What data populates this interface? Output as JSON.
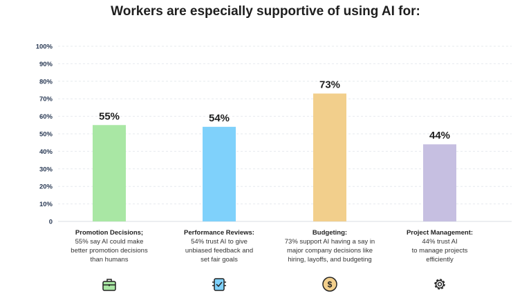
{
  "chart_data": {
    "type": "bar",
    "title": "Workers are especially supportive of using AI for:",
    "categories": [
      "Promotion Decisions;",
      "Performance Reviews:",
      "Budgeting:",
      "Project Management:"
    ],
    "values": [
      55,
      54,
      73,
      44
    ],
    "value_labels": [
      "55%",
      "54%",
      "73%",
      "44%"
    ],
    "colors": [
      "#a9e7a4",
      "#7fd1fb",
      "#f2cf8c",
      "#c6bfe1"
    ],
    "descriptions": [
      [
        "55% say AI could make",
        "better promotion decisions",
        "than humans"
      ],
      [
        "54% trust AI to give",
        "unbiased feedback and",
        "set fair goals"
      ],
      [
        "73% support AI having a say in",
        "major company decisions like",
        "hiring, layoffs, and budgeting"
      ],
      [
        "44% trust AI",
        "to manage projects",
        "efficiently"
      ]
    ],
    "icons": [
      "briefcase-icon",
      "checklist-icon",
      "dollar-coin-icon",
      "gear-icon"
    ],
    "ylim": [
      0,
      100
    ],
    "yticks": [
      "0",
      "10%",
      "20%",
      "30%",
      "40%",
      "50%",
      "60%",
      "70%",
      "80%",
      "90%",
      "100%"
    ],
    "grid": true,
    "xlabel": "",
    "ylabel": ""
  }
}
